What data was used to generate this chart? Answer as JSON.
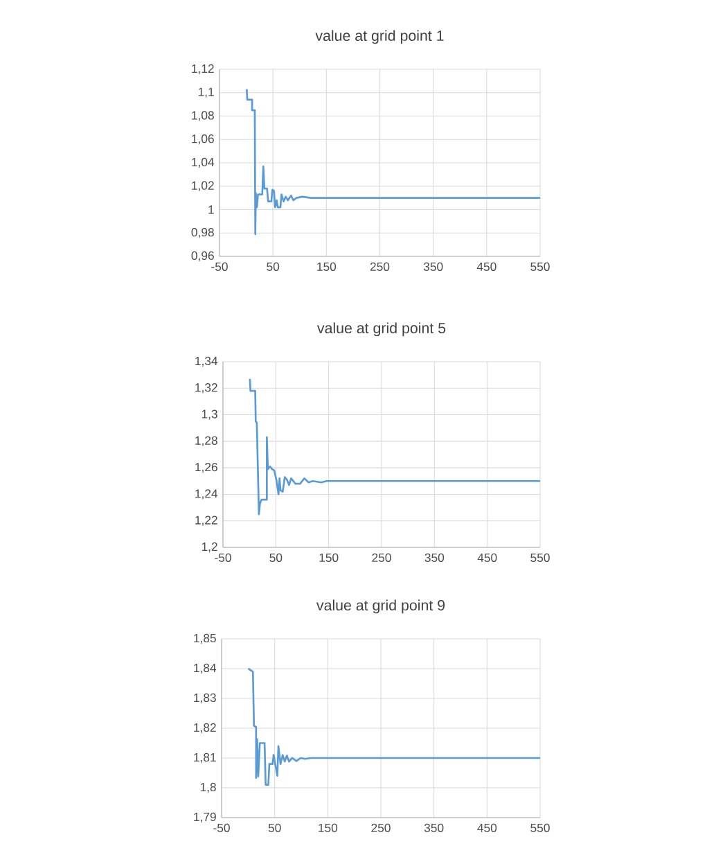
{
  "chart_data": [
    {
      "type": "line",
      "title": "value at grid point 1",
      "color": "#5b9bd5",
      "grid": true,
      "marker": "none",
      "line_style": "solid",
      "x": [
        1,
        2,
        11,
        11,
        16,
        17,
        18,
        20,
        22,
        30,
        32,
        34,
        39,
        41,
        47,
        49,
        52,
        54,
        57,
        59,
        64,
        66,
        70,
        74,
        78,
        84,
        88,
        94,
        105,
        121,
        137,
        550
      ],
      "values": [
        1.103,
        1.094,
        1.094,
        1.085,
        1.085,
        0.979,
        1.014,
        1.002,
        1.013,
        1.013,
        1.037,
        1.018,
        1.018,
        1.007,
        1.007,
        1.017,
        1.016,
        1.002,
        1.008,
        1.002,
        1.002,
        1.013,
        1.007,
        1.011,
        1.008,
        1.012,
        1.008,
        1.01,
        1.011,
        1.01,
        1.01,
        1.01
      ],
      "xlim": [
        -50,
        550
      ],
      "xticks": [
        -50,
        50,
        150,
        250,
        350,
        450,
        550
      ],
      "ylim": [
        0.96,
        1.12
      ],
      "yticks": [
        {
          "value": 0.96,
          "label": "0,96"
        },
        {
          "value": 0.98,
          "label": "0,98"
        },
        {
          "value": 1,
          "label": "1"
        },
        {
          "value": 1.02,
          "label": "1,02"
        },
        {
          "value": 1.04,
          "label": "1,04"
        },
        {
          "value": 1.06,
          "label": "1,06"
        },
        {
          "value": 1.08,
          "label": "1,08"
        },
        {
          "value": 1.1,
          "label": "1,1"
        },
        {
          "value": 1.12,
          "label": "1,12"
        }
      ]
    },
    {
      "type": "line",
      "title": "value at grid point 5",
      "color": "#5b9bd5",
      "grid": true,
      "marker": "none",
      "line_style": "solid",
      "x": [
        1,
        2,
        11,
        12,
        14,
        18,
        20,
        23,
        33,
        33,
        35,
        39,
        43,
        47,
        51,
        55,
        57,
        59,
        63,
        67,
        71,
        75,
        79,
        87,
        96,
        104,
        112,
        120,
        136,
        146,
        550
      ],
      "values": [
        1.327,
        1.318,
        1.318,
        1.295,
        1.294,
        1.225,
        1.233,
        1.236,
        1.236,
        1.283,
        1.259,
        1.261,
        1.259,
        1.258,
        1.251,
        1.24,
        1.252,
        1.243,
        1.242,
        1.253,
        1.251,
        1.247,
        1.252,
        1.248,
        1.248,
        1.252,
        1.249,
        1.25,
        1.249,
        1.25,
        1.25
      ],
      "xlim": [
        -50,
        550
      ],
      "xticks": [
        -50,
        50,
        150,
        250,
        350,
        450,
        550
      ],
      "ylim": [
        1.2,
        1.34
      ],
      "yticks": [
        {
          "value": 1.2,
          "label": "1,2"
        },
        {
          "value": 1.22,
          "label": "1,22"
        },
        {
          "value": 1.24,
          "label": "1,24"
        },
        {
          "value": 1.26,
          "label": "1,26"
        },
        {
          "value": 1.28,
          "label": "1,28"
        },
        {
          "value": 1.3,
          "label": "1,3"
        },
        {
          "value": 1.32,
          "label": "1,32"
        },
        {
          "value": 1.34,
          "label": "1,34"
        }
      ]
    },
    {
      "type": "line",
      "title": "value at grid point 9",
      "color": "#5b9bd5",
      "grid": true,
      "marker": "none",
      "line_style": "solid",
      "x": [
        0,
        3,
        9,
        11,
        15,
        15,
        17,
        19,
        22,
        31,
        33,
        38,
        40,
        46,
        48,
        51,
        55,
        57,
        61,
        65,
        69,
        73,
        77,
        83,
        91,
        99,
        107,
        119,
        550
      ],
      "values": [
        1.84,
        1.8397,
        1.839,
        1.8208,
        1.8204,
        1.8033,
        1.8163,
        1.8038,
        1.815,
        1.815,
        1.801,
        1.801,
        1.808,
        1.808,
        1.811,
        1.808,
        1.804,
        1.814,
        1.808,
        1.811,
        1.8088,
        1.8108,
        1.8088,
        1.81,
        1.809,
        1.81,
        1.8097,
        1.81,
        1.81
      ],
      "xlim": [
        -50,
        550
      ],
      "xticks": [
        -50,
        50,
        150,
        250,
        350,
        450,
        550
      ],
      "ylim": [
        1.79,
        1.85
      ],
      "yticks": [
        {
          "value": 1.79,
          "label": "1,79"
        },
        {
          "value": 1.8,
          "label": "1,8"
        },
        {
          "value": 1.81,
          "label": "1,81"
        },
        {
          "value": 1.82,
          "label": "1,82"
        },
        {
          "value": 1.83,
          "label": "1,83"
        },
        {
          "value": 1.84,
          "label": "1,84"
        },
        {
          "value": 1.85,
          "label": "1,85"
        }
      ]
    }
  ]
}
